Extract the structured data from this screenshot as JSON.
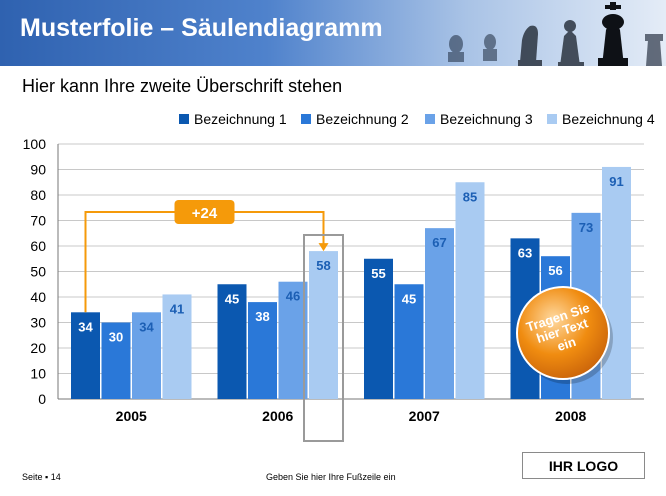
{
  "header": {
    "title": "Musterfolie – Säulendiagramm"
  },
  "subtitle": "Hier kann Ihre zweite Überschrift stehen",
  "chart_data": {
    "type": "bar",
    "categories": [
      "2005",
      "2006",
      "2007",
      "2008"
    ],
    "series": [
      {
        "name": "Bezeichnung 1",
        "values": [
          34,
          45,
          55,
          63
        ],
        "color": "#0b58b0"
      },
      {
        "name": "Bezeichnung 2",
        "values": [
          30,
          38,
          45,
          56
        ],
        "color": "#2a78d8"
      },
      {
        "name": "Bezeichnung 3",
        "values": [
          34,
          46,
          67,
          73
        ],
        "color": "#6aa2e8"
      },
      {
        "name": "Bezeichnung 4",
        "values": [
          41,
          58,
          85,
          91
        ],
        "color": "#a9cbf2"
      }
    ],
    "ylim": [
      0,
      100
    ],
    "yticks": [
      0,
      10,
      20,
      30,
      40,
      50,
      60,
      70,
      80,
      90,
      100
    ],
    "grid": true,
    "legend_position": "top-right",
    "annotation": {
      "label": "+24",
      "color": "#f59a0a",
      "from_category": "2005",
      "from_series": "Bezeichnung 1",
      "to_category": "2006",
      "to_series": "Bezeichnung 4"
    },
    "callout": {
      "text": "Tragen Sie hier Text ein",
      "color": "#f08c10"
    }
  },
  "footer": {
    "page": "Seite ▪ 14",
    "text": "Geben Sie hier Ihre Fußzeile ein",
    "logo": "IHR LOGO"
  }
}
